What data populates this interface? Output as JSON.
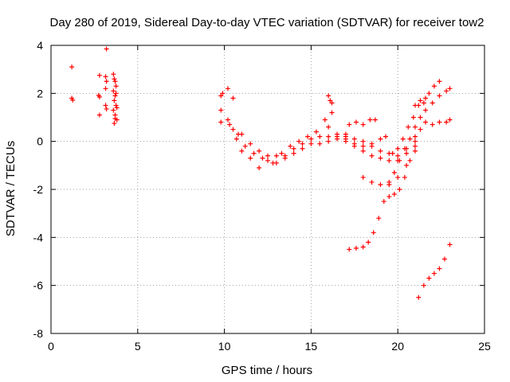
{
  "chart_data": {
    "type": "scatter",
    "title": "Day 280 of 2019, Sidereal Day-to-day VTEC variation (SDTVAR) for receiver tow2",
    "xlabel": "GPS time / hours",
    "ylabel": "SDTVAR / TECUs",
    "xlim": [
      0,
      25
    ],
    "ylim": [
      -8,
      4
    ],
    "xticks": [
      0,
      5,
      10,
      15,
      20,
      25
    ],
    "yticks": [
      -8,
      -6,
      -4,
      -2,
      0,
      2,
      4
    ],
    "grid": true,
    "marker": "+",
    "marker_color": "#ff0000",
    "series": [
      {
        "points": [
          [
            1.2,
            3.1
          ],
          [
            1.2,
            1.8
          ],
          [
            1.25,
            1.72
          ],
          [
            2.8,
            2.75
          ],
          [
            2.75,
            1.92
          ],
          [
            2.8,
            1.85
          ],
          [
            2.8,
            1.1
          ],
          [
            3.2,
            3.85
          ],
          [
            3.15,
            2.7
          ],
          [
            3.2,
            2.5
          ],
          [
            3.15,
            2.2
          ],
          [
            3.15,
            1.5
          ],
          [
            3.2,
            1.35
          ],
          [
            3.6,
            2.8
          ],
          [
            3.65,
            2.6
          ],
          [
            3.7,
            2.5
          ],
          [
            3.75,
            2.3
          ],
          [
            3.6,
            2.1
          ],
          [
            3.7,
            1.9
          ],
          [
            3.65,
            1.7
          ],
          [
            3.75,
            1.5
          ],
          [
            3.6,
            1.3
          ],
          [
            3.7,
            1.1
          ],
          [
            3.8,
            0.9
          ],
          [
            3.65,
            0.75
          ],
          [
            3.75,
            2.0
          ],
          [
            3.8,
            1.4
          ],
          [
            3.7,
            0.95
          ]
        ]
      },
      {
        "points": [
          [
            9.8,
            1.9
          ],
          [
            9.9,
            2.0
          ],
          [
            10.2,
            2.2
          ],
          [
            10.5,
            1.8
          ],
          [
            9.8,
            0.8
          ],
          [
            10.2,
            0.9
          ],
          [
            10.5,
            0.5
          ],
          [
            10.7,
            0.1
          ],
          [
            11.0,
            -0.4
          ],
          [
            11.5,
            -0.7
          ],
          [
            12.0,
            -1.1
          ],
          [
            12.5,
            -0.8
          ],
          [
            13.0,
            -0.6
          ],
          [
            13.5,
            -0.7
          ],
          [
            14.0,
            -0.5
          ],
          [
            14.5,
            -0.3
          ],
          [
            15.0,
            -0.1
          ],
          [
            15.5,
            0.2
          ],
          [
            16.0,
            0.6
          ]
        ]
      },
      {
        "points": [
          [
            9.8,
            1.3
          ],
          [
            10.3,
            0.7
          ],
          [
            10.8,
            0.3
          ],
          [
            11.2,
            -0.2
          ],
          [
            11.7,
            -0.5
          ],
          [
            12.2,
            -0.7
          ],
          [
            12.8,
            -0.9
          ],
          [
            13.3,
            -0.5
          ],
          [
            13.8,
            -0.2
          ],
          [
            14.3,
            0.0
          ],
          [
            14.8,
            0.2
          ],
          [
            15.3,
            0.4
          ],
          [
            15.8,
            0.9
          ],
          [
            16.2,
            1.2
          ]
        ]
      },
      {
        "points": [
          [
            11.0,
            0.3
          ],
          [
            11.5,
            -0.1
          ],
          [
            12.0,
            -0.4
          ],
          [
            12.5,
            -0.6
          ],
          [
            13.0,
            -0.9
          ],
          [
            13.5,
            -0.6
          ],
          [
            14.0,
            -0.3
          ],
          [
            14.5,
            -0.1
          ],
          [
            15.0,
            0.1
          ],
          [
            15.5,
            -0.1
          ],
          [
            16.0,
            0.2
          ],
          [
            16.5,
            0.1
          ],
          [
            17.0,
            0.3
          ]
        ]
      },
      {
        "points": [
          [
            16.0,
            1.9
          ],
          [
            16.1,
            1.7
          ],
          [
            16.2,
            1.6
          ]
        ]
      },
      {
        "points": [
          [
            16.0,
            0.0
          ],
          [
            16.5,
            0.2
          ],
          [
            17.0,
            0.1
          ],
          [
            17.5,
            -0.1
          ],
          [
            18.0,
            -0.2
          ],
          [
            18.5,
            -0.1
          ],
          [
            19.0,
            0.1
          ],
          [
            19.3,
            0.2
          ]
        ]
      },
      {
        "points": [
          [
            16.5,
            0.3
          ],
          [
            17.0,
            0.2
          ],
          [
            17.5,
            0.1
          ],
          [
            18.0,
            0.0
          ],
          [
            18.5,
            -0.2
          ],
          [
            19.0,
            -0.4
          ],
          [
            19.5,
            -0.5
          ],
          [
            20.0,
            -0.6
          ],
          [
            20.5,
            -0.3
          ],
          [
            21.0,
            0.2
          ]
        ]
      },
      {
        "points": [
          [
            17.0,
            0.0
          ],
          [
            17.5,
            -0.2
          ],
          [
            18.0,
            -0.4
          ],
          [
            18.5,
            -0.6
          ],
          [
            19.0,
            -0.7
          ],
          [
            19.5,
            -0.8
          ],
          [
            20.0,
            -0.8
          ],
          [
            20.5,
            -0.5
          ],
          [
            21.0,
            -0.2
          ]
        ]
      },
      {
        "points": [
          [
            17.2,
            0.7
          ],
          [
            17.6,
            0.8
          ],
          [
            18.0,
            0.7
          ],
          [
            18.4,
            0.9
          ],
          [
            18.7,
            0.9
          ]
        ]
      },
      {
        "points": [
          [
            18.0,
            -1.5
          ],
          [
            18.5,
            -1.7
          ],
          [
            19.0,
            -1.8
          ],
          [
            19.5,
            -1.7
          ],
          [
            20.0,
            -1.5
          ],
          [
            20.5,
            -1.0
          ],
          [
            21.0,
            -0.4
          ]
        ]
      },
      {
        "points": [
          [
            17.2,
            -4.5
          ],
          [
            17.6,
            -4.45
          ],
          [
            18.0,
            -4.4
          ],
          [
            18.3,
            -4.2
          ],
          [
            18.6,
            -3.8
          ],
          [
            18.9,
            -3.2
          ],
          [
            19.2,
            -2.5
          ],
          [
            19.5,
            -1.8
          ],
          [
            19.8,
            -1.3
          ],
          [
            20.1,
            -0.8
          ],
          [
            20.4,
            -0.3
          ],
          [
            20.7,
            0.1
          ],
          [
            21.0,
            0.6
          ],
          [
            21.3,
            1.0
          ],
          [
            21.6,
            1.3
          ],
          [
            22.0,
            1.6
          ],
          [
            22.4,
            1.9
          ],
          [
            22.8,
            2.1
          ],
          [
            23.0,
            2.2
          ]
        ]
      },
      {
        "points": [
          [
            19.5,
            -2.3
          ],
          [
            19.8,
            -2.2
          ],
          [
            20.1,
            -2.0
          ],
          [
            20.4,
            -1.5
          ],
          [
            20.7,
            -0.8
          ],
          [
            21.0,
            0.0
          ],
          [
            21.3,
            0.5
          ],
          [
            21.6,
            0.8
          ],
          [
            22.0,
            0.7
          ],
          [
            22.4,
            0.8
          ],
          [
            22.8,
            0.8
          ],
          [
            23.0,
            0.9
          ]
        ]
      },
      {
        "points": [
          [
            19.7,
            -0.5
          ],
          [
            20.0,
            -0.3
          ],
          [
            20.3,
            0.1
          ],
          [
            20.6,
            0.6
          ],
          [
            20.9,
            1.0
          ],
          [
            21.2,
            1.5
          ],
          [
            21.5,
            1.6
          ],
          [
            21.8,
            2.0
          ],
          [
            22.1,
            2.3
          ],
          [
            22.4,
            2.5
          ]
        ]
      },
      {
        "points": [
          [
            21.0,
            1.5
          ],
          [
            21.3,
            1.7
          ],
          [
            21.6,
            1.8
          ]
        ]
      },
      {
        "points": [
          [
            21.2,
            -6.5
          ],
          [
            21.5,
            -6.0
          ],
          [
            21.8,
            -5.7
          ],
          [
            22.1,
            -5.5
          ],
          [
            22.4,
            -5.3
          ],
          [
            22.7,
            -4.9
          ],
          [
            23.0,
            -4.3
          ]
        ]
      }
    ]
  }
}
